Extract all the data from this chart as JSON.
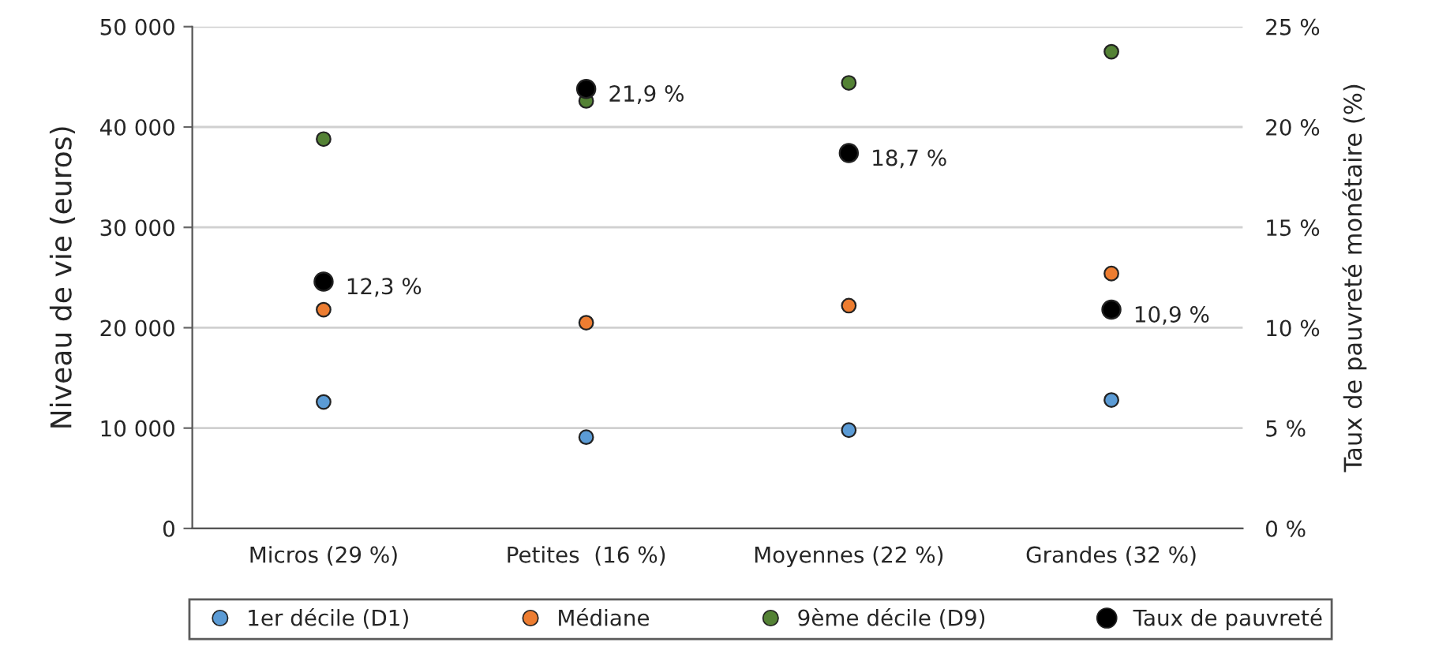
{
  "chart_data": {
    "type": "scatter",
    "xlabel": null,
    "ylabel": "Niveau de vie (euros)",
    "y2label": "Taux de pauvreté monétaire (%)",
    "categories": [
      "Micros (29 %)",
      "Petites  (16 %)",
      "Moyennes (22 %)",
      "Grandes (32 %)"
    ],
    "series": [
      {
        "name": "1er décile (D1)",
        "color": "#5b9bd5",
        "values": [
          12600,
          9100,
          9800,
          12800
        ]
      },
      {
        "name": "Médiane",
        "color": "#ed7d31",
        "values": [
          21800,
          20500,
          22200,
          25400
        ]
      },
      {
        "name": "9ème décile (D9)",
        "color": "#548235",
        "values": [
          38800,
          42600,
          44400,
          47500
        ]
      },
      {
        "name": "Taux de pauvreté",
        "color": "#000000",
        "axis": "y2",
        "values": [
          12.3,
          21.9,
          18.7,
          10.9
        ],
        "value_labels": [
          "12,3 %",
          "21,9 %",
          "18,7 %",
          "10,9 %"
        ]
      }
    ],
    "ylim": [
      0,
      50000
    ],
    "yticks": [
      0,
      {
        "value": 10000,
        "label": "10 000"
      },
      {
        "value": 20000,
        "label": "20 000"
      },
      {
        "value": 30000,
        "label": "30 000"
      },
      {
        "value": 40000,
        "label": "40 000"
      },
      {
        "value": 50000,
        "label": "50 000"
      }
    ],
    "y2lim": [
      0,
      25
    ],
    "y2ticks": [
      {
        "value": 0,
        "label": "0 %"
      },
      {
        "value": 5,
        "label": "5 %"
      },
      {
        "value": 10,
        "label": "10 %"
      },
      {
        "value": 15,
        "label": "15 %"
      },
      {
        "value": 20,
        "label": "20 %"
      },
      {
        "value": 25,
        "label": "25 %"
      }
    ],
    "grid": "y",
    "legend": "bottom",
    "marker": "circle"
  }
}
